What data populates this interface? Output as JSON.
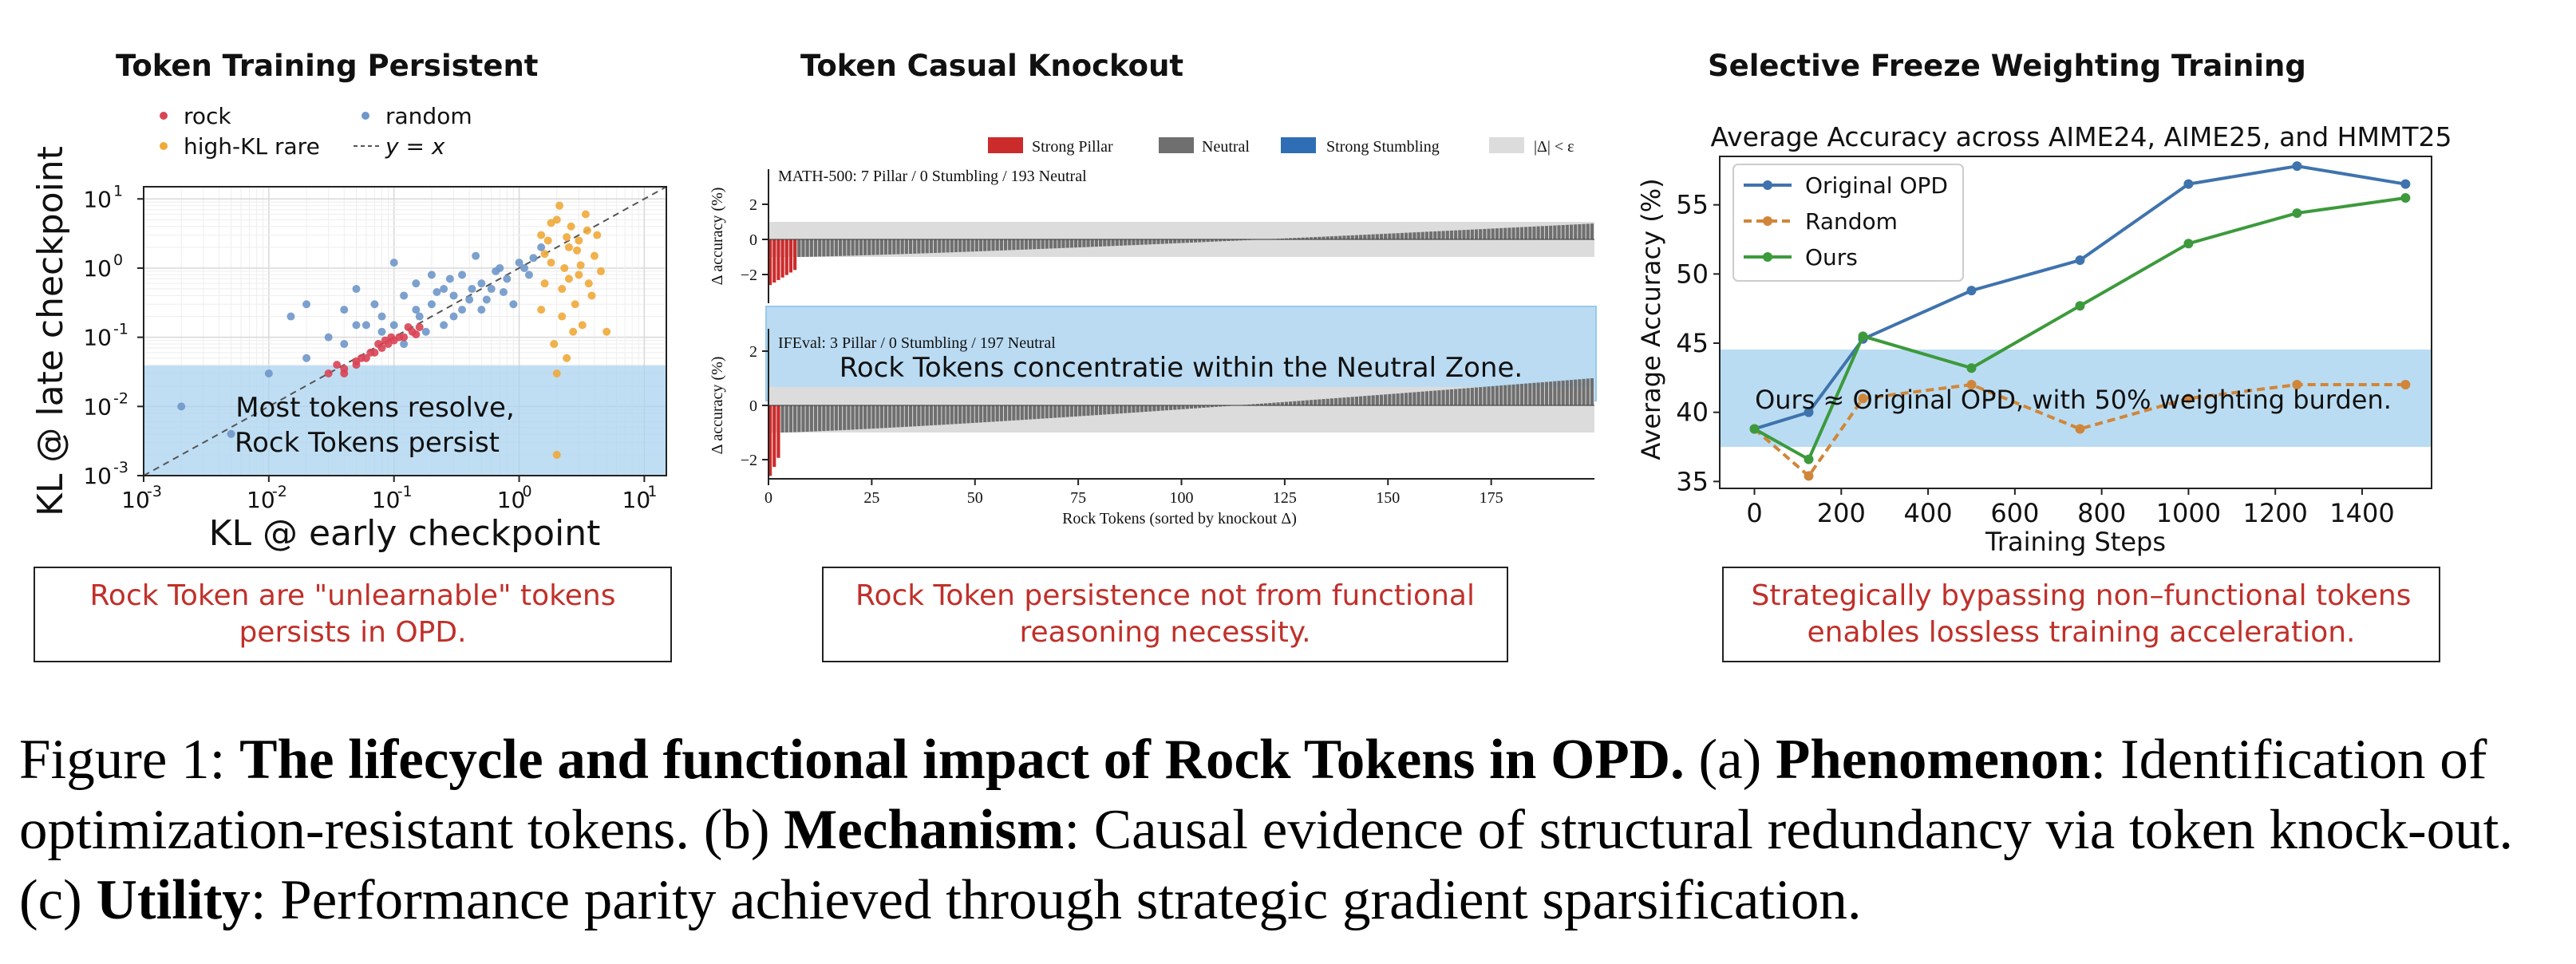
{
  "panel_a": {
    "title": "Token Training Persistent",
    "legend": {
      "rock": "rock",
      "random": "random",
      "highkl": "high-KL rare",
      "yx": "y = x"
    },
    "annotation_line1": "Most tokens resolve,",
    "annotation_line2": "Rock Tokens persist",
    "note": "Rock Token are \"unlearnable\" tokens persists in OPD.",
    "colors": {
      "rock": "#d94455",
      "random": "#6f97c9",
      "highkl": "#f0a93a",
      "zone": "#a9d3ef"
    }
  },
  "panel_b": {
    "title": "Token Casual Knockout",
    "legend": [
      "Strong Pillar",
      "Neutral",
      "Strong Stumbling",
      "|Δ| < ε"
    ],
    "top_label": "MATH-500: 7 Pillar / 0 Stumbling / 193 Neutral",
    "bottom_label": "IFEval: 3 Pillar / 0 Stumbling / 197 Neutral",
    "zone_text": "Rock Tokens concentratie within the Neutral Zone.",
    "note": "Rock Token persistence not from functional reasoning necessity.",
    "colors": {
      "pillar": "#cc2b2b",
      "neutral": "#6f6f6f",
      "stumbling": "#2f6eb5",
      "eps": "#dcdcdc"
    }
  },
  "panel_c": {
    "title": "Selective Freeze Weighting Training",
    "zone_text": "Ours ≈ Original OPD, with 50%  weighting burden.",
    "note": "Strategically bypassing non–functional tokens enables lossless training acceleration."
  },
  "chart_data": [
    {
      "type": "scatter",
      "xlabel": "KL @ early checkpoint",
      "ylabel": "KL @ late checkpoint",
      "xscale": "log",
      "yscale": "log",
      "xlim": [
        0.001,
        15
      ],
      "ylim": [
        0.001,
        15
      ],
      "x_ticks": [
        "10",
        "10",
        "10",
        "10",
        "10"
      ],
      "x_tick_exps": [
        "-3",
        "-2",
        "-1",
        "0",
        "1"
      ],
      "y_ticks": [
        "10",
        "10",
        "10",
        "10",
        "10"
      ],
      "y_tick_exps": [
        "-3",
        "-2",
        "-1",
        "0",
        "1"
      ],
      "series": [
        {
          "name": "rock",
          "points": [
            [
              0.03,
              0.03
            ],
            [
              0.04,
              0.035
            ],
            [
              0.05,
              0.045
            ],
            [
              0.06,
              0.05
            ],
            [
              0.07,
              0.06
            ],
            [
              0.08,
              0.07
            ],
            [
              0.09,
              0.08
            ],
            [
              0.1,
              0.09
            ],
            [
              0.12,
              0.1
            ],
            [
              0.14,
              0.12
            ],
            [
              0.05,
              0.04
            ],
            [
              0.065,
              0.06
            ],
            [
              0.085,
              0.09
            ],
            [
              0.11,
              0.1
            ],
            [
              0.13,
              0.14
            ],
            [
              0.04,
              0.03
            ],
            [
              0.075,
              0.08
            ],
            [
              0.095,
              0.1
            ],
            [
              0.16,
              0.14
            ],
            [
              0.055,
              0.05
            ],
            [
              0.035,
              0.04
            ],
            [
              0.15,
              0.11
            ]
          ]
        },
        {
          "name": "random",
          "points": [
            [
              0.002,
              0.01
            ],
            [
              0.005,
              0.004
            ],
            [
              0.01,
              0.03
            ],
            [
              0.015,
              0.2
            ],
            [
              0.02,
              0.05
            ],
            [
              0.03,
              0.1
            ],
            [
              0.04,
              0.08
            ],
            [
              0.05,
              0.5
            ],
            [
              0.06,
              0.15
            ],
            [
              0.07,
              0.3
            ],
            [
              0.08,
              0.2
            ],
            [
              0.1,
              0.15
            ],
            [
              0.12,
              0.4
            ],
            [
              0.15,
              0.25
            ],
            [
              0.2,
              0.3
            ],
            [
              0.25,
              0.5
            ],
            [
              0.3,
              0.4
            ],
            [
              0.35,
              0.8
            ],
            [
              0.4,
              0.35
            ],
            [
              0.5,
              0.6
            ],
            [
              0.6,
              0.5
            ],
            [
              0.7,
              1.0
            ],
            [
              0.8,
              0.7
            ],
            [
              1.0,
              1.2
            ],
            [
              1.2,
              0.8
            ],
            [
              1.5,
              2.0
            ],
            [
              0.9,
              0.3
            ],
            [
              0.15,
              0.6
            ],
            [
              0.25,
              0.15
            ],
            [
              0.45,
              1.5
            ],
            [
              0.3,
              0.2
            ],
            [
              0.55,
              0.35
            ],
            [
              0.08,
              0.12
            ],
            [
              0.12,
              0.08
            ],
            [
              0.2,
              0.8
            ],
            [
              0.35,
              0.25
            ],
            [
              0.65,
              0.9
            ],
            [
              0.04,
              0.25
            ],
            [
              0.1,
              1.2
            ],
            [
              0.18,
              0.12
            ],
            [
              1.1,
              1.0
            ],
            [
              0.22,
              0.45
            ],
            [
              0.75,
              0.45
            ],
            [
              0.05,
              0.15
            ],
            [
              0.28,
              0.7
            ],
            [
              1.3,
              1.4
            ],
            [
              0.42,
              0.5
            ],
            [
              0.16,
              0.2
            ],
            [
              0.5,
              0.25
            ],
            [
              0.02,
              0.3
            ]
          ]
        },
        {
          "name": "high-KL rare",
          "points": [
            [
              1.5,
              3.0
            ],
            [
              1.8,
              1.2
            ],
            [
              2.0,
              5.0
            ],
            [
              2.2,
              0.5
            ],
            [
              2.5,
              2.0
            ],
            [
              3.0,
              0.8
            ],
            [
              3.5,
              3.5
            ],
            [
              4.0,
              1.5
            ],
            [
              2.8,
              0.3
            ],
            [
              1.6,
              0.6
            ],
            [
              2.1,
              8.0
            ],
            [
              3.2,
              0.15
            ],
            [
              1.9,
              0.08
            ],
            [
              2.4,
              0.05
            ],
            [
              1.7,
              2.5
            ],
            [
              2.6,
              4.0
            ],
            [
              3.8,
              0.4
            ],
            [
              2.3,
              1.0
            ],
            [
              3.0,
              2.5
            ],
            [
              1.5,
              0.25
            ],
            [
              2.7,
              0.12
            ],
            [
              4.5,
              0.9
            ],
            [
              2.0,
              0.03
            ],
            [
              3.4,
              6.0
            ],
            [
              1.8,
              4.5
            ],
            [
              2.9,
              1.8
            ],
            [
              2.2,
              0.2
            ],
            [
              3.6,
              0.6
            ],
            [
              2.5,
              0.7
            ],
            [
              4.2,
              3.0
            ],
            [
              1.6,
              1.6
            ],
            [
              2.0,
              0.002
            ],
            [
              3.1,
              1.1
            ],
            [
              2.4,
              2.8
            ],
            [
              5.0,
              0.12
            ]
          ]
        }
      ]
    },
    {
      "type": "bar",
      "xlabel": "Rock Tokens (sorted by knockout Δ)",
      "ylabel": "Δ accuracy (%)",
      "x_ticks": [
        "0",
        "25",
        "50",
        "75",
        "100",
        "125",
        "150",
        "175"
      ],
      "y_ticks": [
        "2",
        "0",
        "−2"
      ],
      "xlim": [
        0,
        200
      ],
      "panels": [
        {
          "name": "MATH-500",
          "ylim": [
            -3,
            3
          ],
          "pillar": 7,
          "stumbling": 0,
          "neutral": 193,
          "min": -2.6,
          "max": 0.9
        },
        {
          "name": "IFEval",
          "ylim": [
            -3,
            3
          ],
          "pillar": 3,
          "stumbling": 0,
          "neutral": 197,
          "min": -2.6,
          "max": 1.0
        }
      ]
    },
    {
      "type": "line",
      "title": "Average Accuracy across AIME24, AIME25, and HMMT25",
      "xlabel": "Training Steps",
      "ylabel": "Average Accuracy (%)",
      "xlim": [
        -80,
        1560
      ],
      "ylim": [
        34.5,
        58.5
      ],
      "x_ticks": [
        0,
        200,
        400,
        600,
        800,
        1000,
        1200,
        1400
      ],
      "y_ticks": [
        35,
        40,
        45,
        50,
        55
      ],
      "legend_position": "top-left",
      "series": [
        {
          "name": "Original OPD",
          "color": "#3f73ad",
          "dash": false,
          "x": [
            0,
            125,
            250,
            500,
            750,
            1000,
            1250,
            1500
          ],
          "y": [
            38.8,
            40.0,
            45.3,
            48.8,
            51.0,
            56.5,
            57.8,
            56.5
          ]
        },
        {
          "name": "Random",
          "color": "#d0863a",
          "dash": true,
          "x": [
            0,
            125,
            250,
            500,
            750,
            1000,
            1250,
            1500
          ],
          "y": [
            38.8,
            35.4,
            41.0,
            42.0,
            38.8,
            41.0,
            42.0,
            42.0
          ]
        },
        {
          "name": "Ours",
          "color": "#3c9a3c",
          "dash": false,
          "x": [
            0,
            125,
            250,
            500,
            750,
            1000,
            1250,
            1500
          ],
          "y": [
            38.8,
            36.6,
            45.5,
            43.2,
            47.7,
            52.2,
            54.4,
            55.5
          ]
        }
      ]
    }
  ],
  "caption": {
    "fig": "Figure 1: ",
    "bold_title": "The lifecycle and functional impact of Rock Tokens in OPD.",
    "a_prefix": " (a) ",
    "a_term": "Phenomenon",
    "a_text": ": Identification of optimization-resistant tokens. (b) ",
    "b_term": "Mechanism",
    "b_text": ": Causal evidence of structural redundancy via token knock-out. (c) ",
    "c_term": "Utility",
    "c_text": ": Performance parity achieved through strategic gradient sparsification."
  }
}
